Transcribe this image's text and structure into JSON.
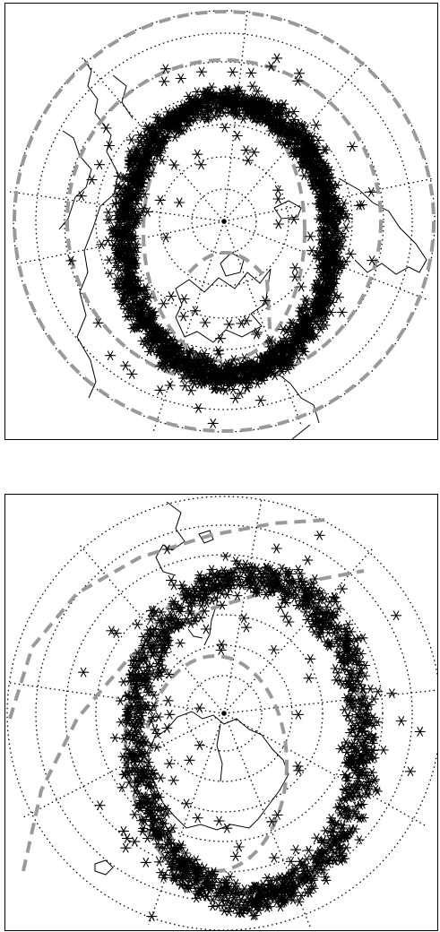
{
  "figure": {
    "panels": [
      {
        "id": "north",
        "hemisphere": "northern",
        "pole_marker": "dot",
        "graticule_style": "dotted",
        "oval_boundary_style": "gray-dashed",
        "marker_symbol": "asterisk",
        "colors": {
          "markers": "#000000",
          "oval_boundaries": "#999999",
          "graticule": "#000000",
          "coastlines": "#000000"
        }
      },
      {
        "id": "south",
        "hemisphere": "southern",
        "pole_marker": "dot",
        "graticule_style": "dotted",
        "oval_boundary_style": "gray-dashed",
        "marker_symbol": "asterisk",
        "colors": {
          "markers": "#000000",
          "oval_boundaries": "#999999",
          "graticule": "#000000",
          "coastlines": "#000000"
        }
      }
    ]
  }
}
